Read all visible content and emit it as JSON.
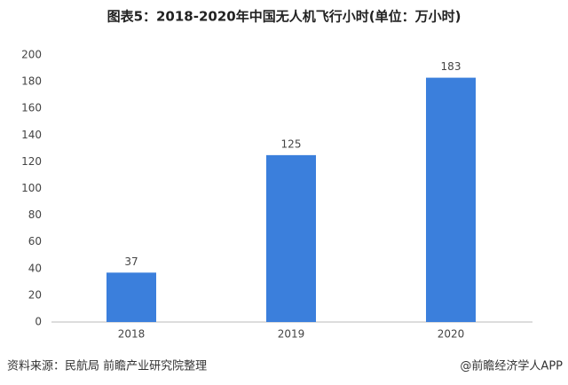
{
  "chart_data": {
    "type": "bar",
    "title": "图表5：2018-2020年中国无人机飞行小时(单位：万小时)",
    "categories": [
      "2018",
      "2019",
      "2020"
    ],
    "values": [
      37,
      125,
      183
    ],
    "color": "#3b7fdc",
    "ylim": [
      0,
      200
    ],
    "yticks": [
      0,
      20,
      40,
      60,
      80,
      100,
      120,
      140,
      160,
      180,
      200
    ],
    "grid": false,
    "source": "资料来源：民航局 前瞻产业研究院整理",
    "credit": "@前瞻经济学人APP"
  }
}
